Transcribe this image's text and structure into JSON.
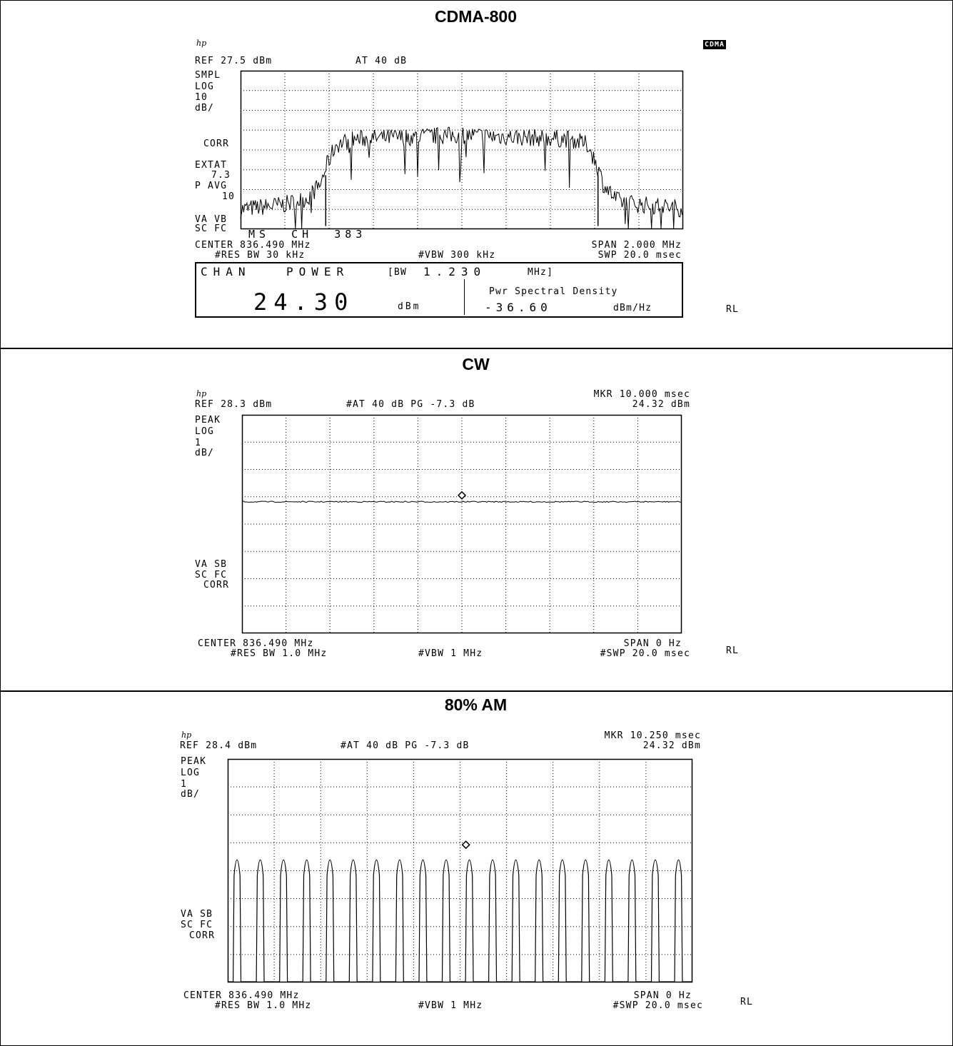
{
  "chart_data": [
    {
      "type": "line",
      "title": "CDMA-800",
      "logo": "hp",
      "mode_badge": "CDMA",
      "ref_level": "REF 27.5 dBm",
      "attenuation": "AT 40 dB",
      "left_annotations": [
        "SMPL",
        "LOG",
        "10",
        "dB/",
        "CORR",
        "EXTAT",
        "7.3",
        "P AVG",
        "10",
        "VA VB",
        "SC FC"
      ],
      "channel_label": "MS  CH  383",
      "center": "CENTER 836.490 MHz",
      "span": "SPAN 2.000 MHz",
      "rbw": "#RES BW 30 kHz",
      "vbw": "#VBW 300 kHz",
      "sweep": "SWP 20.0 msec",
      "side_label": "RL",
      "scale_db_per_div": 10,
      "ref_dbm": 27.5,
      "span_mhz": 2.0,
      "center_mhz": 836.49,
      "channel_bw_mhz": 1.23,
      "channel_power": {
        "header_a": "CHAN",
        "header_b": "POWER",
        "header_c": "[BW",
        "header_d": "1.230",
        "header_e": "MHz]",
        "value": "24.30",
        "unit": "dBm",
        "psd_label": "Pwr Spectral Density",
        "psd_value": "-36.60",
        "psd_unit": "dBm/Hz"
      },
      "trace_profile_db": {
        "x_mhz": [
          835.49,
          835.69,
          835.79,
          835.85,
          835.88,
          835.92,
          836.0,
          836.49,
          836.98,
          837.06,
          837.1,
          837.13,
          837.19,
          837.29,
          837.49
        ],
        "y_dbm": [
          -42.5,
          -40,
          -37,
          -30,
          -20,
          -10,
          -7,
          -5,
          -7,
          -10,
          -20,
          -30,
          -38,
          -40,
          -42
        ]
      }
    },
    {
      "type": "line",
      "title": "CW",
      "logo": "hp",
      "ref_level": "REF 28.3 dBm",
      "attenuation": "#AT 40 dB PG -7.3 dB",
      "marker_time": "MKR 10.000 msec",
      "marker_level": "24.32 dBm",
      "left_annotations_top": [
        "PEAK",
        "LOG",
        "1",
        "dB/"
      ],
      "left_annotations_bottom": [
        "VA SB",
        "SC FC",
        "CORR"
      ],
      "center": "CENTER 836.490 MHz",
      "span": "SPAN 0 Hz",
      "rbw": "#RES BW 1.0 MHz",
      "vbw": "#VBW 1 MHz",
      "sweep": "#SWP 20.0 msec",
      "side_label": "RL",
      "scale_db_per_div": 1,
      "ref_dbm": 28.3,
      "sweep_ms": 20.0,
      "marker_ms": 10.0,
      "marker_dbm": 24.32,
      "trace_level_dbm": 24.32
    },
    {
      "type": "line",
      "title": "80% AM",
      "logo": "hp",
      "ref_level": "REF 28.4 dBm",
      "attenuation": "#AT 40 dB PG -7.3 dB",
      "marker_time": "MKR 10.250 msec",
      "marker_level": "24.32 dBm",
      "left_annotations_top": [
        "PEAK",
        "LOG",
        "1",
        "dB/"
      ],
      "left_annotations_bottom": [
        "VA SB",
        "SC FC",
        "CORR"
      ],
      "center": "CENTER 836.490 MHz",
      "span": "SPAN 0 Hz",
      "rbw": "#RES BW 1.0 MHz",
      "vbw": "#VBW 1 MHz",
      "sweep": "#SWP 20.0 msec",
      "side_label": "RL",
      "scale_db_per_div": 1,
      "ref_dbm": 28.4,
      "sweep_ms": 20.0,
      "marker_ms": 10.25,
      "marker_dbm": 24.32,
      "peak_level_dbm": 24.4,
      "pulse_count": 20,
      "pulse_period_ms": 1.0
    }
  ]
}
